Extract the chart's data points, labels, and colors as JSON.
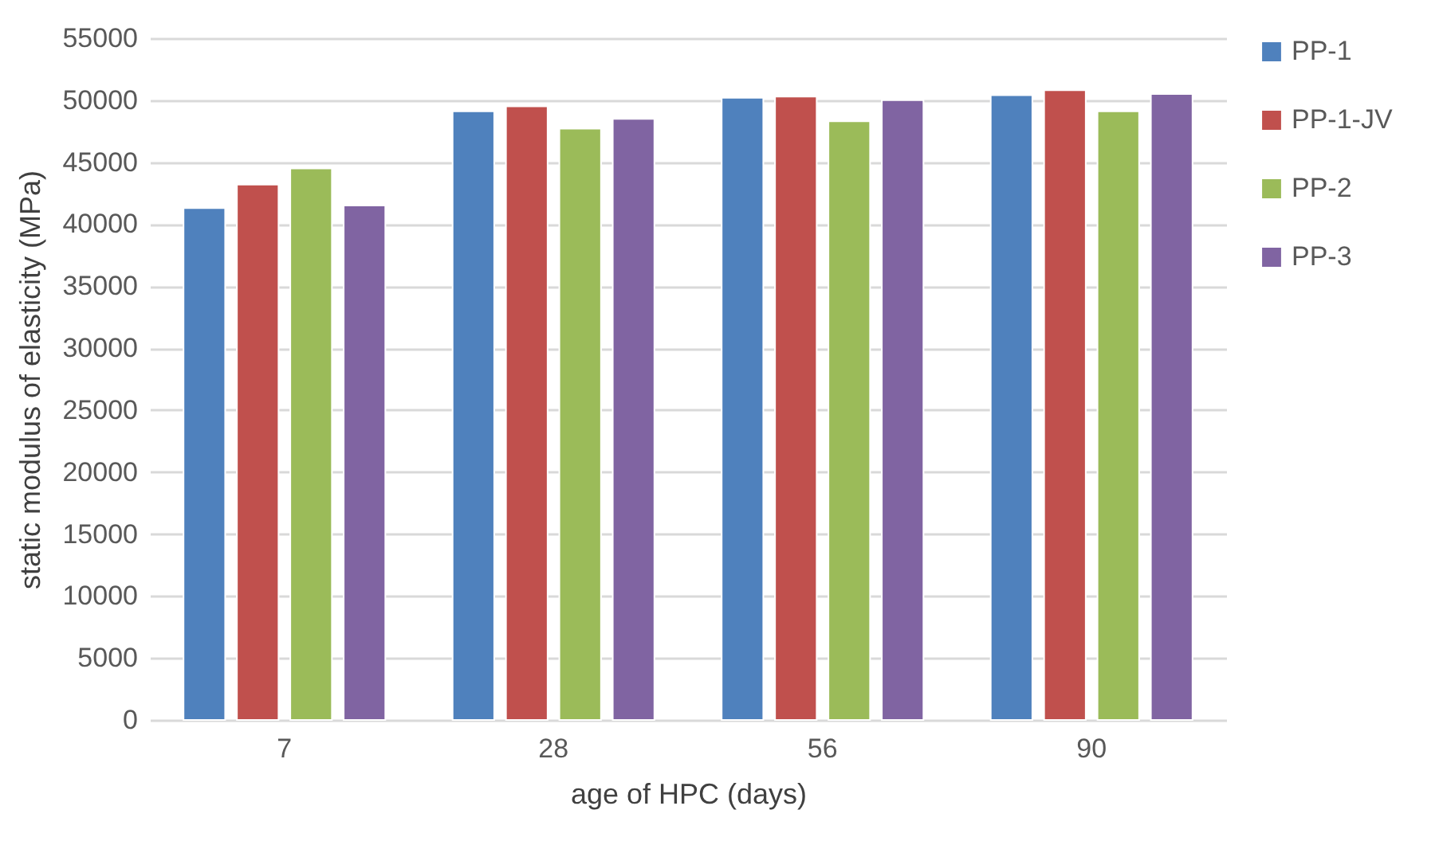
{
  "chart_data": {
    "type": "bar",
    "xlabel": "age of HPC (days)",
    "ylabel": "static modulus of elasticity (MPa)",
    "categories": [
      "7",
      "28",
      "56",
      "90"
    ],
    "series": [
      {
        "name": "PP-1",
        "color": "#4f81bd",
        "values": [
          41300,
          49100,
          50200,
          50400
        ]
      },
      {
        "name": "PP-1-JV",
        "color": "#c0504d",
        "values": [
          43200,
          49500,
          50300,
          50800
        ]
      },
      {
        "name": "PP-2",
        "color": "#9bbb59",
        "values": [
          44500,
          47700,
          48300,
          49100
        ]
      },
      {
        "name": "PP-3",
        "color": "#8064a2",
        "values": [
          41500,
          48500,
          50000,
          50500
        ]
      }
    ],
    "ylim": [
      0,
      55000
    ],
    "yticks": [
      0,
      5000,
      10000,
      15000,
      20000,
      25000,
      30000,
      35000,
      40000,
      45000,
      50000,
      55000
    ],
    "grid": "y",
    "legend": "right"
  }
}
